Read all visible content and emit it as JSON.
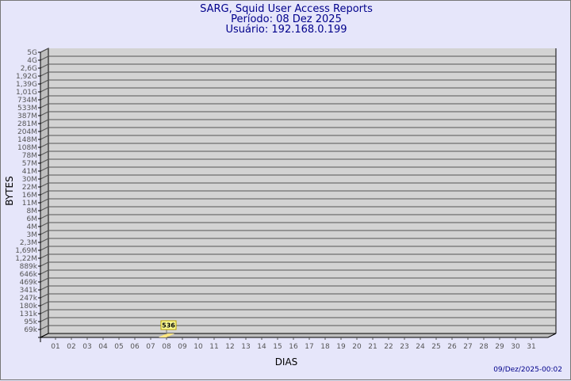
{
  "header": {
    "title": "SARG, Squid User Access Reports",
    "period": "Período: 08 Dez 2025",
    "user": "Usuário: 192.168.0.199"
  },
  "footer": {
    "timestamp": "09/Dez/2025-00:02"
  },
  "colors": {
    "background": "#e6e6fa",
    "plot": "#d3d3d3",
    "bar": "#ffe680",
    "label_box": "#ffff99",
    "title": "#00008b"
  },
  "chart_data": {
    "type": "bar",
    "xlabel": "DIAS",
    "ylabel": "BYTES",
    "y_scale": "log",
    "y_ticks": [
      "5G",
      "4G",
      "2,6G",
      "1,92G",
      "1,39G",
      "1,01G",
      "734M",
      "533M",
      "387M",
      "281M",
      "204M",
      "148M",
      "108M",
      "78M",
      "57M",
      "41M",
      "30M",
      "22M",
      "16M",
      "11M",
      "8M",
      "6M",
      "4M",
      "3M",
      "2,3M",
      "1,69M",
      "1,22M",
      "889k",
      "646k",
      "469k",
      "341k",
      "247k",
      "180k",
      "131k",
      "95k",
      "69k"
    ],
    "categories": [
      "01",
      "02",
      "03",
      "04",
      "05",
      "06",
      "07",
      "08",
      "09",
      "10",
      "11",
      "12",
      "13",
      "14",
      "15",
      "16",
      "17",
      "18",
      "19",
      "20",
      "21",
      "22",
      "23",
      "24",
      "25",
      "26",
      "27",
      "28",
      "29",
      "30",
      "31"
    ],
    "values": [
      {
        "day": "08",
        "value": 536,
        "label": "536"
      }
    ],
    "grid": true
  }
}
